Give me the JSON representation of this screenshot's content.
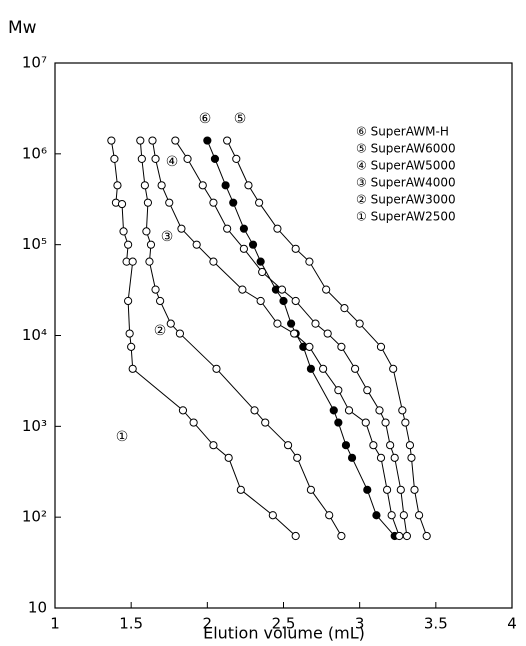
{
  "chart_data": {
    "type": "line",
    "y_label": "Mw",
    "x_label": "Elution volume (mL)",
    "log_y": true,
    "xlim": [
      1,
      4
    ],
    "xticks": [
      1,
      1.5,
      2,
      2.5,
      3,
      3.5,
      4
    ],
    "ylim": [
      10,
      10000000
    ],
    "yticks": [
      10,
      {
        "value": 100,
        "label": "10²"
      },
      {
        "value": 1000,
        "label": "10³"
      },
      {
        "value": 10000,
        "label": "10⁴"
      },
      {
        "value": 100000,
        "label": "10⁵"
      },
      {
        "value": 1000000,
        "label": "10⁶"
      },
      {
        "value": 10000000,
        "label": "10⁷"
      }
    ],
    "annotations": [
      "⑥",
      "⑤",
      "④",
      "③",
      "②",
      "①"
    ],
    "series": [
      {
        "name": "⑥ SuperAWM-H",
        "color": "#000000",
        "marker_fill": "#000000",
        "x": [
          2.0,
          2.05,
          2.12,
          2.17,
          2.24,
          2.3,
          2.35,
          2.45,
          2.5,
          2.55,
          2.58,
          2.63,
          2.68,
          2.83,
          2.86,
          2.91,
          2.95,
          3.05,
          3.11,
          3.23
        ],
        "values": [
          1400000,
          880000,
          450000,
          290000,
          150000,
          100000,
          65000,
          32000,
          24000,
          13500,
          10500,
          7500,
          4300,
          1500,
          1100,
          620,
          450,
          200,
          105,
          62
        ]
      },
      {
        "name": "⑤ SuperAW6000",
        "color": "#000000",
        "marker_fill": "#ffffff",
        "x": [
          2.13,
          2.19,
          2.27,
          2.34,
          2.46,
          2.58,
          2.67,
          2.78,
          2.9,
          3.0,
          3.14,
          3.22,
          3.28,
          3.3,
          3.33,
          3.34,
          3.36,
          3.39,
          3.44
        ],
        "values": [
          1400000,
          880000,
          450000,
          290000,
          150000,
          90000,
          65000,
          32000,
          20000,
          13500,
          7500,
          4300,
          1500,
          1100,
          620,
          450,
          200,
          105,
          62
        ]
      },
      {
        "name": "④ SuperAW5000",
        "color": "#000000",
        "marker_fill": "#ffffff",
        "x": [
          1.79,
          1.87,
          1.97,
          2.04,
          2.13,
          2.24,
          2.36,
          2.49,
          2.58,
          2.71,
          2.79,
          2.88,
          2.97,
          3.05,
          3.13,
          3.17,
          3.2,
          3.23,
          3.27,
          3.29,
          3.31
        ],
        "values": [
          1400000,
          880000,
          450000,
          290000,
          150000,
          90000,
          50000,
          32000,
          24000,
          13500,
          10500,
          7500,
          4300,
          2500,
          1500,
          1100,
          620,
          450,
          200,
          105,
          62
        ]
      },
      {
        "name": "③ SuperAW4000",
        "color": "#000000",
        "marker_fill": "#ffffff",
        "x": [
          1.64,
          1.66,
          1.7,
          1.75,
          1.83,
          1.93,
          2.04,
          2.23,
          2.35,
          2.46,
          2.57,
          2.67,
          2.76,
          2.86,
          2.93,
          3.04,
          3.09,
          3.14,
          3.18,
          3.21,
          3.26
        ],
        "values": [
          1400000,
          880000,
          450000,
          290000,
          150000,
          100000,
          65000,
          32000,
          24000,
          13500,
          10500,
          7500,
          4300,
          2500,
          1500,
          1100,
          620,
          450,
          200,
          105,
          62
        ]
      },
      {
        "name": "② SuperAW3000",
        "color": "#000000",
        "marker_fill": "#ffffff",
        "x": [
          1.56,
          1.57,
          1.59,
          1.61,
          1.6,
          1.63,
          1.62,
          1.66,
          1.69,
          1.76,
          1.82,
          2.06,
          2.31,
          2.38,
          2.53,
          2.59,
          2.68,
          2.8,
          2.88
        ],
        "values": [
          1400000,
          880000,
          450000,
          290000,
          140000,
          100000,
          65000,
          32000,
          24000,
          13500,
          10500,
          4300,
          1500,
          1100,
          620,
          450,
          200,
          105,
          62
        ]
      },
      {
        "name": "① SuperAW2500",
        "color": "#000000",
        "marker_fill": "#ffffff",
        "x": [
          1.37,
          1.39,
          1.41,
          1.4,
          1.44,
          1.45,
          1.48,
          1.47,
          1.51,
          1.48,
          1.49,
          1.5,
          1.51,
          1.84,
          1.91,
          2.04,
          2.14,
          2.22,
          2.43,
          2.58
        ],
        "values": [
          1400000,
          880000,
          450000,
          290000,
          280000,
          140000,
          100000,
          65000,
          65000,
          24000,
          10500,
          7500,
          4300,
          1500,
          1100,
          620,
          450,
          200,
          105,
          62
        ]
      }
    ]
  }
}
